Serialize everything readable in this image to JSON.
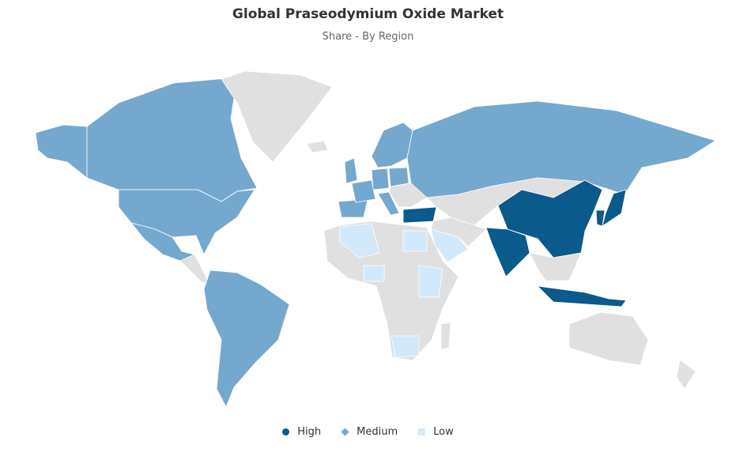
{
  "title": "Global Praseodymium Oxide Market",
  "subtitle": "Share - By Region",
  "colors": {
    "High": "#0a5a8c",
    "Medium": "#75a8cf",
    "Low": "#d2e8fb",
    "NoData": "#e0e0e0"
  },
  "legend": [
    {
      "label": "High",
      "marker": "circle"
    },
    {
      "label": "Medium",
      "marker": "diamond"
    },
    {
      "label": "Low",
      "marker": "square"
    }
  ],
  "regions": {
    "Alaska (USA)": "Medium",
    "Canada": "Medium",
    "United States": "Medium",
    "Mexico": "Medium",
    "Greenland": "NoData",
    "Iceland": "NoData",
    "Central America": "NoData",
    "South America": "Medium",
    "United Kingdom": "Medium",
    "Spain & Portugal": "Medium",
    "France": "Medium",
    "Germany": "Medium",
    "Italy": "Medium",
    "Scandinavia": "Medium",
    "Poland": "Medium",
    "Eastern Europe": "NoData",
    "Russia": "Medium",
    "Central Asia": "NoData",
    "Middle East": "NoData",
    "China": "High",
    "India": "High",
    "Thailand": "High",
    "Indonesia": "High",
    "Japan": "High",
    "South Korea": "High",
    "Turkey": "High",
    "Southeast Asia": "NoData",
    "Saudi Arabia": "Low",
    "Africa": "NoData",
    "Algeria": "Low",
    "Egypt": "Low",
    "Nigeria": "Low",
    "Ethiopia & Kenya": "Low",
    "South Africa": "Low",
    "Madagascar": "NoData",
    "Australia": "NoData",
    "New Zealand": "NoData"
  }
}
